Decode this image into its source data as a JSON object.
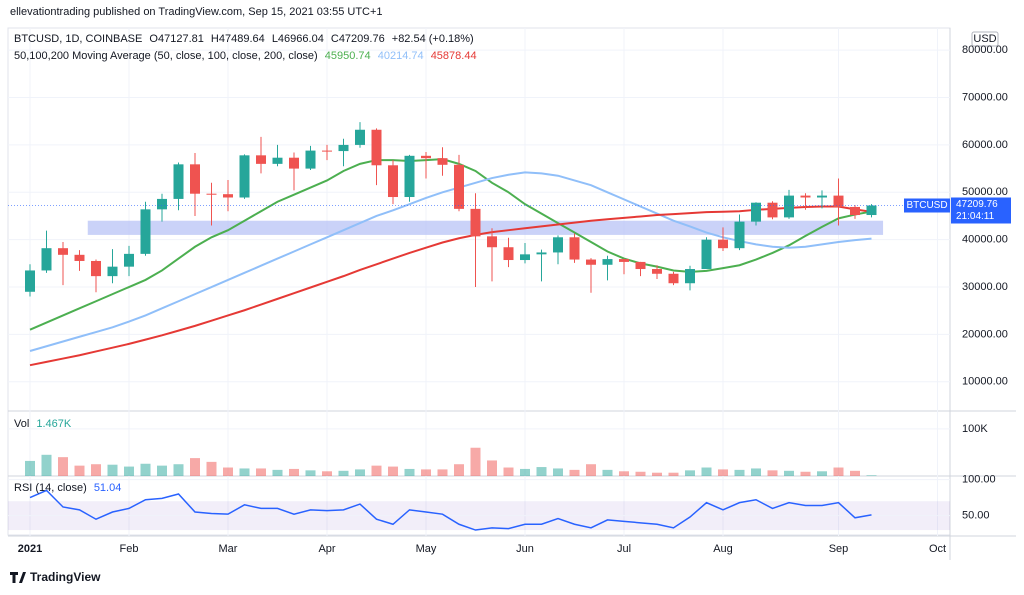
{
  "header": {
    "attribution": "ellevationtrading published on TradingView.com, Sep 15, 2021 03:55 UTC+1"
  },
  "chart_data": {
    "type": "candlestick",
    "symbol": "BTCUSD",
    "symbol_info": "BTCUSD, 1D, COINBASE",
    "ohlc_legend": [
      "O47127.81",
      "H47489.64",
      "L46966.04",
      "C47209.76",
      "+82.54 (+0.18%)"
    ],
    "currency": "USD",
    "categories": [
      "2021",
      null,
      null,
      null,
      null,
      null,
      "Feb",
      null,
      null,
      null,
      null,
      null,
      "Mar",
      null,
      null,
      null,
      null,
      null,
      "Apr",
      null,
      null,
      null,
      null,
      null,
      "May",
      null,
      null,
      null,
      null,
      null,
      "Jun",
      null,
      null,
      null,
      null,
      null,
      "Jul",
      null,
      null,
      null,
      null,
      null,
      "Aug",
      null,
      null,
      null,
      null,
      null,
      null,
      "Sep",
      null,
      null,
      null,
      null,
      null,
      "Oct"
    ],
    "open": [
      29000,
      33500,
      38200,
      36800,
      35500,
      32300,
      34300,
      37000,
      46400,
      48600,
      55900,
      49700,
      49600,
      48900,
      57800,
      56000,
      57300,
      55000,
      58800,
      58700,
      60000,
      63200,
      55700,
      49000,
      57700,
      57200,
      55800,
      46500,
      40700,
      38400,
      35700,
      36900,
      37300,
      40500,
      35800,
      34700,
      35900,
      35300,
      33800,
      32800,
      30800,
      33800,
      40000,
      38200,
      43800,
      47800,
      44700,
      49300,
      48900,
      49300,
      46900,
      45200,
      null,
      null,
      null,
      null
    ],
    "high": [
      34800,
      41900,
      39500,
      37800,
      35800,
      38000,
      38700,
      48000,
      49700,
      56300,
      58300,
      52000,
      52600,
      58000,
      61700,
      60000,
      58400,
      59800,
      60000,
      61300,
      64800,
      63500,
      56800,
      57900,
      58500,
      59500,
      57900,
      49800,
      42400,
      40400,
      39300,
      37900,
      40900,
      41300,
      36100,
      36600,
      36000,
      35300,
      34600,
      33200,
      34500,
      40500,
      42600,
      45300,
      47900,
      48100,
      50500,
      49800,
      50400,
      52900,
      47300,
      47490,
      null,
      null,
      null,
      null
    ],
    "low": [
      28000,
      33000,
      30400,
      33400,
      28900,
      30800,
      32300,
      36600,
      43800,
      46200,
      45000,
      43000,
      46000,
      48600,
      54000,
      55500,
      50400,
      54700,
      56800,
      55500,
      59400,
      51500,
      47500,
      48000,
      52900,
      53500,
      46000,
      30000,
      31200,
      34200,
      35000,
      31200,
      34800,
      35100,
      28800,
      31400,
      32700,
      32300,
      31700,
      30400,
      29300,
      33800,
      37600,
      37800,
      43000,
      44300,
      44400,
      46300,
      46600,
      43000,
      44400,
      44700,
      null,
      null,
      null,
      null
    ],
    "close": [
      33500,
      38200,
      36800,
      35500,
      32300,
      34300,
      37000,
      46400,
      48600,
      55900,
      49700,
      49600,
      48900,
      57800,
      56000,
      57300,
      55000,
      58800,
      58700,
      60000,
      63200,
      55700,
      49000,
      57700,
      57200,
      55800,
      46500,
      40700,
      38400,
      35700,
      36900,
      37300,
      40500,
      35800,
      34700,
      35900,
      35300,
      33800,
      32800,
      30800,
      33800,
      40000,
      38200,
      43800,
      47800,
      44700,
      49300,
      48900,
      49300,
      46900,
      45200,
      47209.76,
      null,
      null,
      null,
      null
    ],
    "up_color": "#26a69a",
    "down_color": "#ef5350",
    "ylim": [
      3830,
      84680
    ],
    "yticks": [
      {
        "value": 10000,
        "label": "10000.00"
      },
      {
        "value": 20000,
        "label": "20000.00"
      },
      {
        "value": 30000,
        "label": "30000.00"
      },
      {
        "value": 40000,
        "label": "40000.00"
      },
      {
        "value": 50000,
        "label": "50000.00"
      },
      {
        "value": 60000,
        "label": "60000.00"
      },
      {
        "value": 70000,
        "label": "70000.00"
      },
      {
        "value": 80000,
        "label": "80000.00"
      }
    ],
    "countdown": "21:04:11",
    "last_price_color": "#2962ff",
    "support_zone": [
      41000,
      44000
    ],
    "support_zone_color": "#b8c3f5",
    "moving_averages": {
      "label": "50,100,200 Moving Average (50, close, 100, close, 200, close)",
      "series": [
        {
          "color": "#4caf50",
          "values": [
            21000,
            22500,
            24000,
            25500,
            27000,
            28500,
            30000,
            31500,
            33500,
            36000,
            38500,
            40500,
            42000,
            44000,
            46000,
            48000,
            49500,
            51000,
            52500,
            54500,
            56000,
            56800,
            56800,
            56600,
            56800,
            57000,
            56000,
            54500,
            52000,
            50000,
            47500,
            45500,
            43500,
            41500,
            39500,
            37500,
            36000,
            35000,
            34300,
            33500,
            33200,
            33400,
            34000,
            34600,
            35800,
            37200,
            38800,
            40800,
            42700,
            44500,
            45300,
            45950.74,
            null,
            null,
            null,
            null
          ]
        },
        {
          "color": "#90bff9",
          "values": [
            16500,
            17500,
            18500,
            19500,
            20500,
            21500,
            22700,
            24000,
            25500,
            27000,
            28500,
            30000,
            31500,
            33000,
            34500,
            36000,
            37500,
            39000,
            40500,
            42000,
            43500,
            45000,
            46200,
            47500,
            48800,
            50000,
            51000,
            52000,
            53000,
            53700,
            54200,
            54000,
            53500,
            52500,
            51500,
            50000,
            48500,
            47000,
            45500,
            44000,
            42800,
            41500,
            40500,
            39700,
            39000,
            38500,
            38300,
            38500,
            39000,
            39500,
            39900,
            40214.74,
            null,
            null,
            null,
            null
          ]
        },
        {
          "color": "#e53935",
          "values": [
            13500,
            14200,
            14900,
            15600,
            16400,
            17200,
            18000,
            18900,
            19800,
            20800,
            21800,
            22900,
            24000,
            25100,
            26300,
            27500,
            28700,
            29900,
            31100,
            32300,
            33600,
            34800,
            36000,
            37200,
            38300,
            39400,
            40300,
            41000,
            41600,
            42000,
            42400,
            42800,
            43200,
            43600,
            44000,
            44300,
            44600,
            44900,
            45200,
            45400,
            45600,
            45800,
            45900,
            46000,
            46300,
            46500,
            46700,
            46900,
            47000,
            47000,
            46400,
            45878.44,
            null,
            null,
            null,
            null
          ]
        }
      ]
    },
    "volume": {
      "label": "Vol",
      "last": {
        "value": 1467,
        "label": "1.467K"
      },
      "values": [
        32000,
        45000,
        40000,
        22000,
        25000,
        24000,
        20000,
        26000,
        22000,
        25000,
        38000,
        30000,
        18000,
        16000,
        16000,
        13000,
        15000,
        12000,
        10000,
        11000,
        14000,
        22000,
        20000,
        15000,
        14000,
        14000,
        25000,
        60000,
        33000,
        18000,
        15000,
        19000,
        16000,
        13000,
        25000,
        13000,
        10000,
        9000,
        7000,
        7000,
        12000,
        18000,
        14000,
        13000,
        16000,
        12000,
        11000,
        9000,
        10000,
        18000,
        11000,
        1467,
        null,
        null,
        null,
        null
      ],
      "ylim": [
        0,
        129500
      ],
      "yticks": [
        {
          "value": 100000,
          "label": "100K"
        }
      ]
    },
    "rsi": {
      "label": "RSI (14, close)",
      "color": "#2962ff",
      "values": [
        75,
        85,
        62,
        58,
        45,
        55,
        60,
        72,
        74,
        80,
        55,
        53,
        52,
        65,
        60,
        60,
        52,
        58,
        57,
        58,
        66,
        45,
        38,
        58,
        55,
        52,
        38,
        30,
        33,
        32,
        38,
        38,
        46,
        38,
        33,
        44,
        42,
        40,
        38,
        33,
        48,
        68,
        58,
        68,
        72,
        60,
        68,
        64,
        64,
        68,
        47,
        51.04,
        null,
        null,
        null,
        null
      ],
      "ylim": [
        21.7,
        105
      ],
      "yticks": [
        {
          "value": 100,
          "label": "100.00"
        },
        {
          "value": 50,
          "label": "50.00"
        }
      ],
      "band": [
        30,
        70
      ]
    }
  },
  "footer": {
    "brand": "TradingView"
  }
}
